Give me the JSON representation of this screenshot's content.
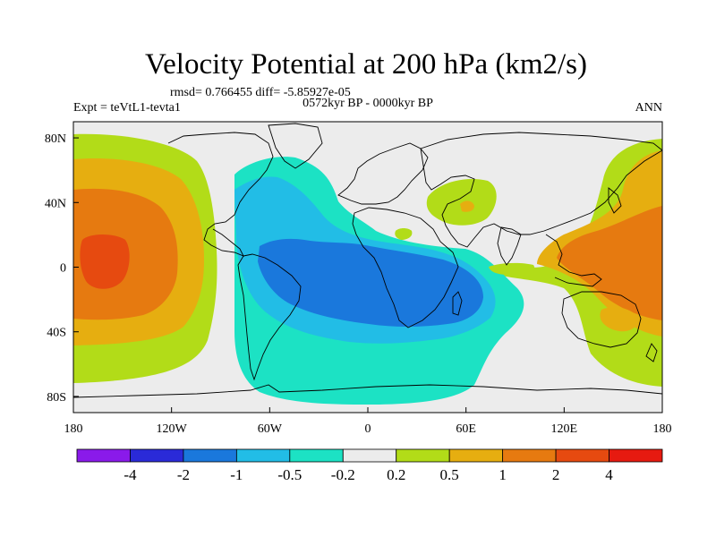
{
  "title": "Velocity Potential at 200 hPa (km2/s)",
  "stats_line": "rmsd= 0.766455 diff= -5.85927e-05",
  "experiment": "Expt = teVtL1-tevta1",
  "period": "0572kyr BP - 0000kyr BP",
  "season": "ANN",
  "axes": {
    "x_ticks": [
      "180",
      "120W",
      "60W",
      "0",
      "60E",
      "120E",
      "180"
    ],
    "y_ticks": [
      "80N",
      "40N",
      "0",
      "40S",
      "80S"
    ]
  },
  "colorbar": {
    "labels": [
      "-4",
      "-2",
      "-1",
      "-0.5",
      "-0.2",
      "0.2",
      "0.5",
      "1",
      "2",
      "4"
    ],
    "colors": [
      "#8a1aea",
      "#2a2ad8",
      "#1a78dc",
      "#22bde6",
      "#1ce2c4",
      "#ececec",
      "#b2dc18",
      "#e6ae10",
      "#e67a10",
      "#e64a10",
      "#e61a10"
    ]
  }
}
